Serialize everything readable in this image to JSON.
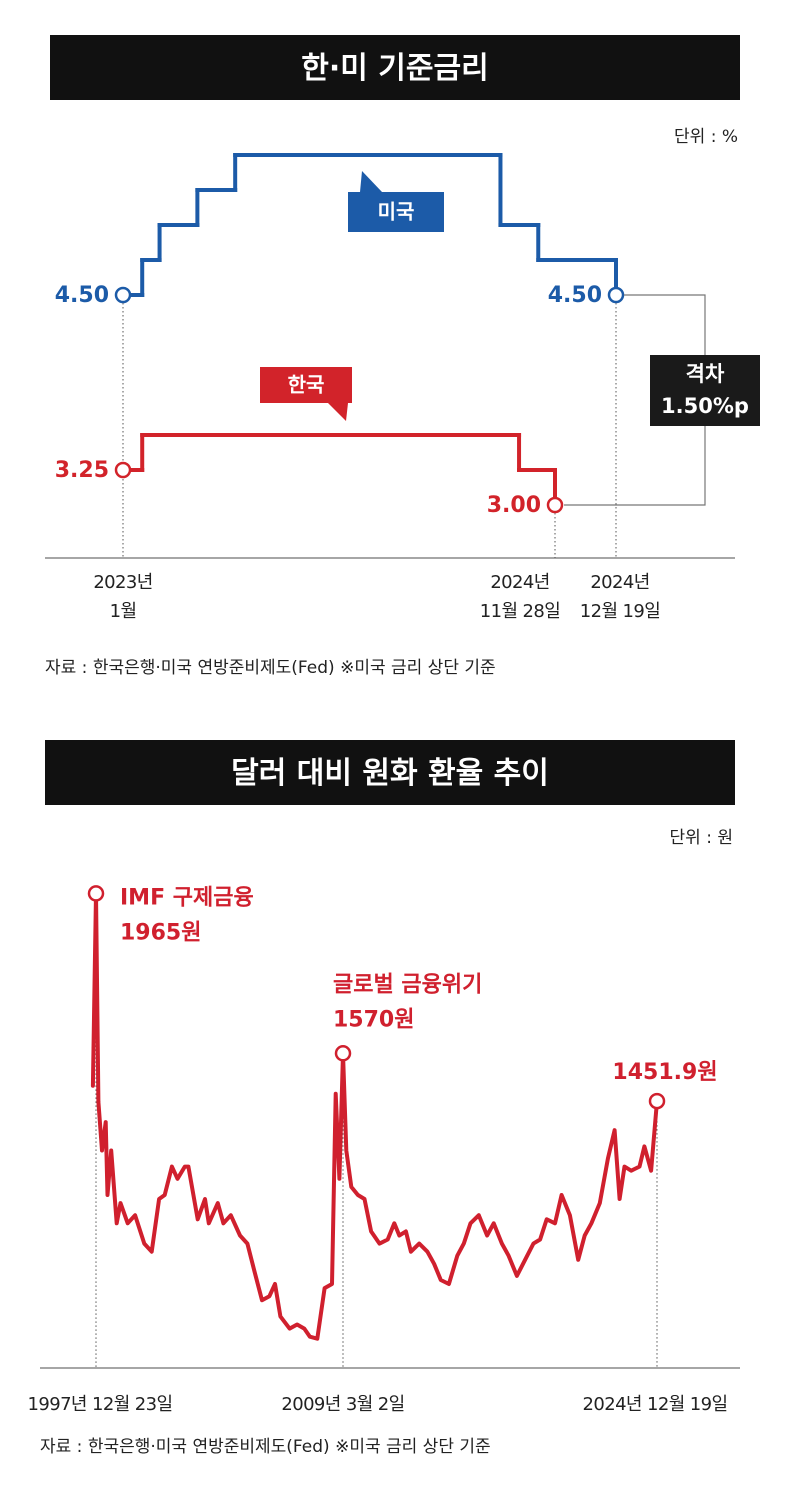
{
  "chart_data": [
    {
      "type": "step",
      "title": "한·미 기준금리",
      "unit": "단위 : %",
      "series": [
        {
          "name": "미국",
          "color": "#1c5ba8",
          "x": [
            "2023-01",
            "2023-02",
            "2023-03",
            "2023-05",
            "2023-07",
            "2024-09",
            "2024-11",
            "2024-12-19"
          ],
          "values": [
            4.5,
            4.75,
            5,
            5.25,
            5.5,
            5,
            4.75,
            4.5
          ],
          "value_labels": [
            "4.50",
            null,
            null,
            null,
            null,
            null,
            null,
            "4.50"
          ]
        },
        {
          "name": "한국",
          "color": "#d2232a",
          "x": [
            "2023-01",
            "2023-02",
            "2024-10",
            "2024-11-28"
          ],
          "values": [
            3.25,
            3.5,
            3.25,
            3
          ],
          "value_labels": [
            "3.25",
            null,
            null,
            "3.00"
          ]
        }
      ],
      "ylim": [
        2.6,
        5.75
      ],
      "xticks": [
        {
          "value": "2023-01",
          "label": [
            "2023년",
            "1월"
          ]
        },
        {
          "value": "2024-11-28",
          "label": [
            "2024년",
            "11월 28일"
          ]
        },
        {
          "value": "2024-12-19",
          "label": [
            "2024년",
            "12월 19일"
          ]
        }
      ],
      "gap_label": [
        "격차",
        "1.50%p"
      ],
      "source": "자료 : 한국은행·미국 연방준비제도(Fed) ※미국 금리 상단 기준"
    },
    {
      "type": "line",
      "title": "달러 대비 원화 환율 추이",
      "unit": "단위 : 원",
      "series": [
        {
          "color": "#d0202e",
          "x": [
            "1997-11",
            "1997-12-23",
            "1998-02",
            "1998-04",
            "1998-06",
            "1998-07",
            "1998-09",
            "1998-12",
            "1999-02",
            "1999-06",
            "1999-10",
            "2000-03",
            "2000-07",
            "2000-11",
            "2001-02",
            "2001-06",
            "2001-09",
            "2002-01",
            "2002-03",
            "2002-08",
            "2002-12",
            "2003-02",
            "2003-07",
            "2003-10",
            "2004-02",
            "2004-07",
            "2004-11",
            "2005-03",
            "2005-07",
            "2005-11",
            "2006-02",
            "2006-05",
            "2006-10",
            "2007-02",
            "2007-06",
            "2007-09",
            "2008-01",
            "2008-05",
            "2008-09",
            "2008-11",
            "2009-01",
            "2009-03-02",
            "2009-05",
            "2009-08",
            "2009-12",
            "2010-04",
            "2010-08",
            "2011-01",
            "2011-06",
            "2011-10",
            "2012-01",
            "2012-05",
            "2012-08",
            "2013-01",
            "2013-06",
            "2013-10",
            "2014-02",
            "2014-07",
            "2014-12",
            "2015-04",
            "2015-08",
            "2016-01",
            "2016-06",
            "2016-10",
            "2017-03",
            "2017-07",
            "2017-12",
            "2018-05",
            "2018-10",
            "2019-02",
            "2019-06",
            "2019-11",
            "2020-03",
            "2020-08",
            "2021-01",
            "2021-05",
            "2021-09",
            "2022-02",
            "2022-07",
            "2022-11",
            "2023-02",
            "2023-05",
            "2023-09",
            "2024-02",
            "2024-05",
            "2024-09",
            "2024-12-19"
          ],
          "values": [
            1490,
            1965,
            1450,
            1330,
            1400,
            1220,
            1330,
            1150,
            1200,
            1150,
            1170,
            1100,
            1080,
            1210,
            1220,
            1290,
            1260,
            1290,
            1290,
            1160,
            1210,
            1150,
            1200,
            1150,
            1170,
            1120,
            1100,
            1030,
            960,
            970,
            1000,
            920,
            890,
            900,
            890,
            870,
            865,
            990,
            1000,
            1470,
            1260,
            1570,
            1330,
            1240,
            1220,
            1210,
            1130,
            1100,
            1110,
            1150,
            1120,
            1130,
            1080,
            1100,
            1080,
            1050,
            1010,
            1000,
            1070,
            1100,
            1150,
            1170,
            1120,
            1150,
            1100,
            1070,
            1020,
            1060,
            1100,
            1110,
            1160,
            1150,
            1220,
            1170,
            1060,
            1120,
            1150,
            1200,
            1310,
            1380,
            1210,
            1290,
            1280,
            1290,
            1340,
            1280,
            1451.9
          ],
          "value_labels": [
            null,
            "1965원",
            null,
            null,
            null,
            null,
            null,
            null,
            null,
            null,
            null,
            null,
            null,
            null,
            null,
            null,
            null,
            null,
            null,
            null,
            null,
            null,
            null,
            null,
            null,
            null,
            null,
            null,
            null,
            null,
            null,
            null,
            null,
            null,
            null,
            null,
            null,
            null,
            null,
            null,
            null,
            "1570원",
            null,
            null,
            null,
            null,
            null,
            null,
            null,
            null,
            null,
            null,
            null,
            null,
            null,
            null,
            null,
            null,
            null,
            null,
            null,
            null,
            null,
            null,
            null,
            null,
            null,
            null,
            null,
            null,
            null,
            null,
            null,
            null,
            null,
            null,
            null,
            null,
            null,
            null,
            null,
            null,
            null,
            null,
            null,
            null,
            "1451.9원"
          ],
          "notes": [
            null,
            "IMF 구제금융",
            null,
            null,
            null,
            null,
            null,
            null,
            null,
            null,
            null,
            null,
            null,
            null,
            null,
            null,
            null,
            null,
            null,
            null,
            null,
            null,
            null,
            null,
            null,
            null,
            null,
            null,
            null,
            null,
            null,
            null,
            null,
            null,
            null,
            null,
            null,
            null,
            null,
            null,
            null,
            "글로벌 금융위기",
            null,
            null,
            null,
            null,
            null,
            null,
            null,
            null,
            null,
            null,
            null,
            null,
            null,
            null,
            null,
            null,
            null,
            null,
            null,
            null,
            null,
            null,
            null,
            null,
            null,
            null,
            null,
            null,
            null,
            null,
            null,
            null,
            null,
            null,
            null,
            null,
            null,
            null,
            null,
            null,
            null,
            null,
            null,
            null,
            null
          ]
        }
      ],
      "ylim": [
        800,
        2050
      ],
      "xticks": [
        {
          "value": "1997-12-23",
          "label": "1997년 12월 23일"
        },
        {
          "value": "2009-03-02",
          "label": "2009년 3월 2일"
        },
        {
          "value": "2024-12-19",
          "label": "2024년 12월 19일"
        }
      ],
      "source": "자료 : 한국은행·미국 연방준비제도(Fed) ※미국 금리 상단 기준"
    }
  ]
}
